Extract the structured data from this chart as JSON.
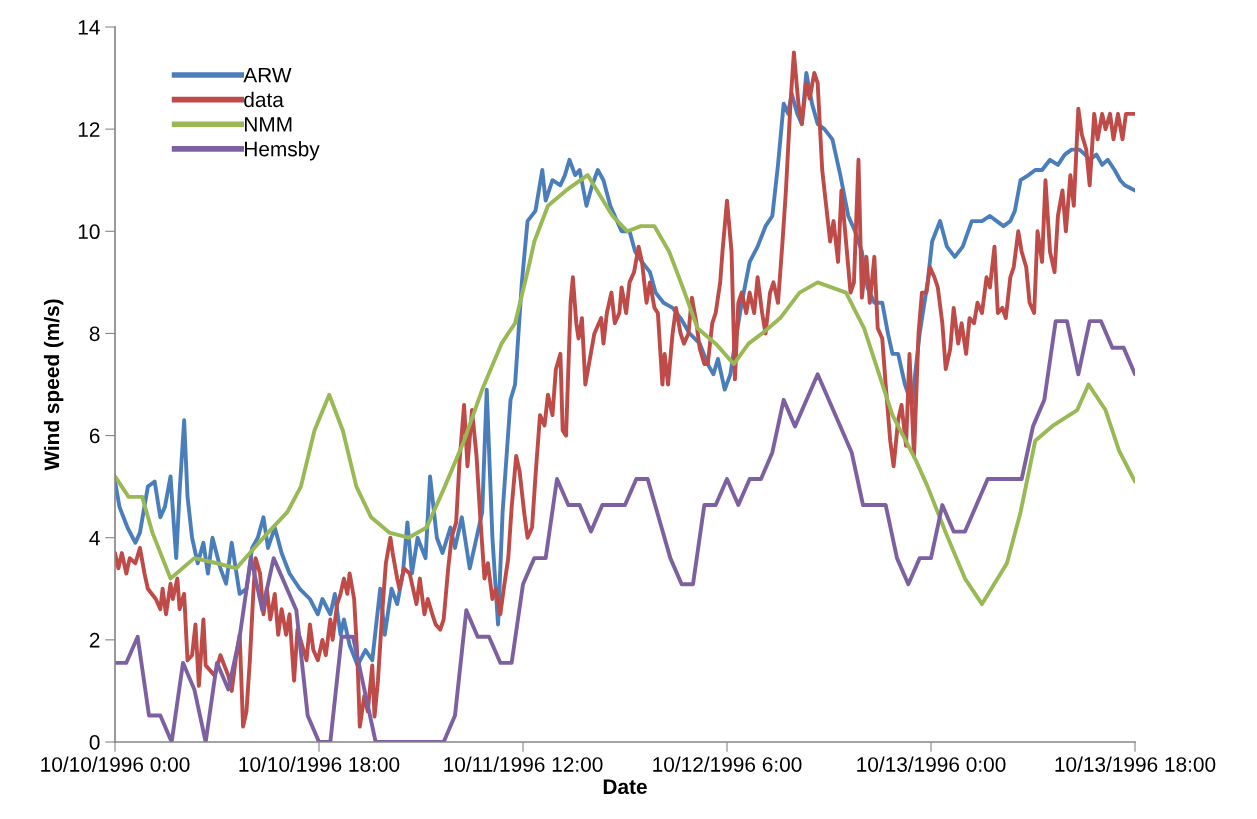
{
  "chart_data": {
    "type": "line",
    "xlabel": "Date",
    "ylabel": "Wind speed (m/s)",
    "xlim": [
      "1996-10-10T00:00",
      "1996-10-13T18:00"
    ],
    "xticks": [
      {
        "value": "1996-10-10T00:00",
        "label": "10/10/1996 0:00"
      },
      {
        "value": "1996-10-10T18:00",
        "label": "10/10/1996 18:00"
      },
      {
        "value": "1996-10-11T12:00",
        "label": "10/11/1996 12:00"
      },
      {
        "value": "1996-10-12T06:00",
        "label": "10/12/1996 6:00"
      },
      {
        "value": "1996-10-13T00:00",
        "label": "10/13/1996 0:00"
      },
      {
        "value": "1996-10-13T18:00",
        "label": "10/13/1996 18:00"
      }
    ],
    "ylim": [
      0,
      14
    ],
    "yticks": [
      0,
      2,
      4,
      6,
      8,
      10,
      12,
      14
    ],
    "grid": false,
    "legend": "top left",
    "marker": "none",
    "line_style": "solid",
    "series": [
      {
        "name": "ARW",
        "color": "#4a7ebb",
        "x": [
          "1996-10-10T00:00",
          "1996-10-10T00:24",
          "1996-10-10T01:06",
          "1996-10-10T01:48",
          "1996-10-10T02:12",
          "1996-10-10T02:54",
          "1996-10-10T03:30",
          "1996-10-10T04:00",
          "1996-10-10T04:24",
          "1996-10-10T04:54",
          "1996-10-10T05:24",
          "1996-10-10T05:42",
          "1996-10-10T06:06",
          "1996-10-10T06:24",
          "1996-10-10T06:48",
          "1996-10-10T07:18",
          "1996-10-10T07:48",
          "1996-10-10T08:12",
          "1996-10-10T08:36",
          "1996-10-10T09:18",
          "1996-10-10T09:48",
          "1996-10-10T10:18",
          "1996-10-10T11:00",
          "1996-10-10T11:36",
          "1996-10-10T12:06",
          "1996-10-10T12:36",
          "1996-10-10T13:06",
          "1996-10-10T13:30",
          "1996-10-10T14:06",
          "1996-10-10T14:42",
          "1996-10-10T15:24",
          "1996-10-10T16:18",
          "1996-10-10T17:12",
          "1996-10-10T17:54",
          "1996-10-10T18:18",
          "1996-10-10T19:00",
          "1996-10-10T19:24",
          "1996-10-10T19:54",
          "1996-10-10T20:12",
          "1996-10-10T20:42",
          "1996-10-10T21:24",
          "1996-10-10T22:06",
          "1996-10-10T22:42",
          "1996-10-10T23:24",
          "1996-10-10T23:48",
          "1996-10-11T00:24",
          "1996-10-11T00:54",
          "1996-10-11T01:24",
          "1996-10-11T01:48",
          "1996-10-11T02:12",
          "1996-10-11T02:42",
          "1996-10-11T03:24",
          "1996-10-11T03:48",
          "1996-10-11T04:24",
          "1996-10-11T04:54",
          "1996-10-11T05:36",
          "1996-10-11T06:00",
          "1996-10-11T06:36",
          "1996-10-11T07:18",
          "1996-10-11T07:48",
          "1996-10-11T08:24",
          "1996-10-11T08:48",
          "1996-10-11T09:18",
          "1996-10-11T09:48",
          "1996-10-11T10:12",
          "1996-10-11T10:54",
          "1996-10-11T11:18",
          "1996-10-11T11:54",
          "1996-10-11T12:24",
          "1996-10-11T13:06",
          "1996-10-11T13:42",
          "1996-10-11T14:00",
          "1996-10-11T14:36",
          "1996-10-11T15:18",
          "1996-10-11T15:42",
          "1996-10-11T16:06",
          "1996-10-11T16:36",
          "1996-10-11T17:00",
          "1996-10-11T17:36",
          "1996-10-11T18:06",
          "1996-10-11T18:36",
          "1996-10-11T19:06",
          "1996-10-11T19:42",
          "1996-10-11T20:06",
          "1996-10-11T20:42",
          "1996-10-11T21:24",
          "1996-10-11T21:54",
          "1996-10-11T22:30",
          "1996-10-11T23:12",
          "1996-10-11T23:42",
          "1996-10-12T00:24",
          "1996-10-12T01:12",
          "1996-10-12T01:54",
          "1996-10-12T02:42",
          "1996-10-12T03:36",
          "1996-10-12T04:18",
          "1996-10-12T04:48",
          "1996-10-12T05:12",
          "1996-10-12T05:48",
          "1996-10-12T06:18",
          "1996-10-12T06:42",
          "1996-10-12T07:18",
          "1996-10-12T08:00",
          "1996-10-12T08:42",
          "1996-10-12T09:24",
          "1996-10-12T10:00",
          "1996-10-12T10:30",
          "1996-10-12T11:00",
          "1996-10-12T11:24",
          "1996-10-12T11:42",
          "1996-10-12T12:12",
          "1996-10-12T12:36",
          "1996-10-12T13:00",
          "1996-10-12T13:30",
          "1996-10-12T14:00",
          "1996-10-12T14:36",
          "1996-10-12T15:18",
          "1996-10-12T16:00",
          "1996-10-12T16:42",
          "1996-10-12T17:18",
          "1996-10-12T17:54",
          "1996-10-12T18:24",
          "1996-10-12T19:00",
          "1996-10-12T19:42",
          "1996-10-12T20:12",
          "1996-10-12T20:36",
          "1996-10-12T21:06",
          "1996-10-12T21:42",
          "1996-10-12T22:18",
          "1996-10-12T23:00",
          "1996-10-12T23:42",
          "1996-10-13T00:06",
          "1996-10-13T00:48",
          "1996-10-13T01:24",
          "1996-10-13T02:06",
          "1996-10-13T02:48",
          "1996-10-13T03:36",
          "1996-10-13T04:30",
          "1996-10-13T05:12",
          "1996-10-13T05:48",
          "1996-10-13T06:24",
          "1996-10-13T07:00",
          "1996-10-13T07:24",
          "1996-10-13T07:54",
          "1996-10-13T08:36",
          "1996-10-13T09:12",
          "1996-10-13T09:48",
          "1996-10-13T10:30",
          "1996-10-13T11:12",
          "1996-10-13T11:48",
          "1996-10-13T12:24",
          "1996-10-13T13:06",
          "1996-10-13T13:36",
          "1996-10-13T14:00",
          "1996-10-13T14:36",
          "1996-10-13T15:06",
          "1996-10-13T15:36",
          "1996-10-13T16:12",
          "1996-10-13T16:42",
          "1996-10-13T17:06",
          "1996-10-13T18:00"
        ],
        "values": [
          5.1,
          4.6,
          4.2,
          3.9,
          4.1,
          5.0,
          5.1,
          4.4,
          4.6,
          5.2,
          3.6,
          4.9,
          6.3,
          4.8,
          4.0,
          3.5,
          3.9,
          3.3,
          4.0,
          3.4,
          3.1,
          3.9,
          2.9,
          3.0,
          3.8,
          4.0,
          4.4,
          3.8,
          4.2,
          3.7,
          3.3,
          3.0,
          2.8,
          2.5,
          2.8,
          2.5,
          2.9,
          2.1,
          2.4,
          1.9,
          1.5,
          1.8,
          1.6,
          3.0,
          2.1,
          3.0,
          2.7,
          3.3,
          4.3,
          3.3,
          4.0,
          3.6,
          5.2,
          4.0,
          3.7,
          4.2,
          3.8,
          4.4,
          3.4,
          3.9,
          4.5,
          6.9,
          4.0,
          2.3,
          4.5,
          6.7,
          7.0,
          9.0,
          10.2,
          10.4,
          11.2,
          10.6,
          11.0,
          10.9,
          11.1,
          11.4,
          11.1,
          11.2,
          10.5,
          10.9,
          11.2,
          11.0,
          10.5,
          10.3,
          10.0,
          10.0,
          9.6,
          9.4,
          9.2,
          8.8,
          8.6,
          8.5,
          8.3,
          8.0,
          7.8,
          7.4,
          7.2,
          7.5,
          6.9,
          7.2,
          7.8,
          8.6,
          9.4,
          9.7,
          10.1,
          10.3,
          11.3,
          12.5,
          12.3,
          12.7,
          12.3,
          12.1,
          13.1,
          12.5,
          12.1,
          12.0,
          11.8,
          11.1,
          10.3,
          10.0,
          9.6,
          8.9,
          8.6,
          8.6,
          8.0,
          7.6,
          7.6,
          7.0,
          6.6,
          8.0,
          9.0,
          9.8,
          10.2,
          9.7,
          9.5,
          9.7,
          10.2,
          10.2,
          10.3,
          10.2,
          10.1,
          10.2,
          10.4,
          11.0,
          11.1,
          11.2,
          11.2,
          11.4,
          11.3,
          11.5,
          11.6,
          11.6,
          11.5,
          11.4,
          11.5,
          11.3,
          11.4,
          11.2,
          11.0,
          10.9,
          10.8
        ]
      },
      {
        "name": "data",
        "color": "#be4b48",
        "x": [
          "1996-10-10T00:00",
          "1996-10-10T00:18",
          "1996-10-10T00:36",
          "1996-10-10T01:00",
          "1996-10-10T01:18",
          "1996-10-10T01:48",
          "1996-10-10T02:12",
          "1996-10-10T02:36",
          "1996-10-10T02:54",
          "1996-10-10T03:36",
          "1996-10-10T04:00",
          "1996-10-10T04:12",
          "1996-10-10T04:30",
          "1996-10-10T04:54",
          "1996-10-10T05:06",
          "1996-10-10T05:30",
          "1996-10-10T05:42",
          "1996-10-10T06:06",
          "1996-10-10T06:24",
          "1996-10-10T06:48",
          "1996-10-10T07:06",
          "1996-10-10T07:24",
          "1996-10-10T07:48",
          "1996-10-10T08:00",
          "1996-10-10T08:48",
          "1996-10-10T09:18",
          "1996-10-10T10:00",
          "1996-10-10T10:18",
          "1996-10-10T10:42",
          "1996-10-10T11:00",
          "1996-10-10T11:18",
          "1996-10-10T11:36",
          "1996-10-10T11:54",
          "1996-10-10T12:12",
          "1996-10-10T12:24",
          "1996-10-10T12:48",
          "1996-10-10T13:06",
          "1996-10-10T13:24",
          "1996-10-10T13:42",
          "1996-10-10T14:06",
          "1996-10-10T14:24",
          "1996-10-10T14:42",
          "1996-10-10T15:06",
          "1996-10-10T15:24",
          "1996-10-10T15:48",
          "1996-10-10T16:06",
          "1996-10-10T16:30",
          "1996-10-10T16:54",
          "1996-10-10T17:12",
          "1996-10-10T17:30",
          "1996-10-10T17:54",
          "1996-10-10T18:18",
          "1996-10-10T18:36",
          "1996-10-10T19:00",
          "1996-10-10T19:12",
          "1996-10-10T19:36",
          "1996-10-10T19:54",
          "1996-10-10T20:12",
          "1996-10-10T20:30",
          "1996-10-10T20:42",
          "1996-10-10T21:06",
          "1996-10-10T21:24",
          "1996-10-10T21:36",
          "1996-10-10T22:00",
          "1996-10-10T22:18",
          "1996-10-10T22:42",
          "1996-10-10T22:54",
          "1996-10-10T23:12",
          "1996-10-10T23:36",
          "1996-10-10T23:54",
          "1996-10-11T00:18",
          "1996-10-11T00:30",
          "1996-10-11T00:54",
          "1996-10-11T01:06",
          "1996-10-11T01:30",
          "1996-10-11T02:00",
          "1996-10-11T02:36",
          "1996-10-11T02:54",
          "1996-10-11T03:18",
          "1996-10-11T03:36",
          "1996-10-11T04:00",
          "1996-10-11T04:18",
          "1996-10-11T04:42",
          "1996-10-11T05:00",
          "1996-10-11T05:24",
          "1996-10-11T05:42",
          "1996-10-11T06:06",
          "1996-10-11T06:24",
          "1996-10-11T06:48",
          "1996-10-11T07:06",
          "1996-10-11T07:30",
          "1996-10-11T07:54",
          "1996-10-11T08:12",
          "1996-10-11T08:36",
          "1996-10-11T08:54",
          "1996-10-11T09:18",
          "1996-10-11T09:36",
          "1996-10-11T10:00",
          "1996-10-11T10:18",
          "1996-10-11T10:42",
          "1996-10-11T11:00",
          "1996-10-11T11:24",
          "1996-10-11T11:42",
          "1996-10-11T12:06",
          "1996-10-11T12:24",
          "1996-10-11T12:48",
          "1996-10-11T13:06",
          "1996-10-11T13:30",
          "1996-10-11T13:54",
          "1996-10-11T14:12",
          "1996-10-11T14:36",
          "1996-10-11T14:54",
          "1996-10-11T15:18",
          "1996-10-11T15:30",
          "1996-10-11T15:48",
          "1996-10-11T16:12",
          "1996-10-11T16:24",
          "1996-10-11T16:42",
          "1996-10-11T16:54",
          "1996-10-11T17:12",
          "1996-10-11T17:30",
          "1996-10-11T17:54",
          "1996-10-11T18:18",
          "1996-10-11T18:54",
          "1996-10-11T19:06",
          "1996-10-11T19:24",
          "1996-10-11T19:48",
          "1996-10-11T20:06",
          "1996-10-11T20:30",
          "1996-10-11T20:42",
          "1996-10-11T21:06",
          "1996-10-11T21:24",
          "1996-10-11T21:48",
          "1996-10-11T22:12",
          "1996-10-11T22:30",
          "1996-10-11T22:54",
          "1996-10-11T23:12",
          "1996-10-11T23:36",
          "1996-10-11T23:54",
          "1996-10-12T00:18",
          "1996-10-12T00:30",
          "1996-10-12T00:48",
          "1996-10-12T01:12",
          "1996-10-12T01:30",
          "1996-10-12T01:54",
          "1996-10-12T02:12",
          "1996-10-12T02:36",
          "1996-10-12T02:54",
          "1996-10-12T03:18",
          "1996-10-12T03:36",
          "1996-10-12T04:00",
          "1996-10-12T04:18",
          "1996-10-12T04:42",
          "1996-10-12T05:00",
          "1996-10-12T05:24",
          "1996-10-12T05:36",
          "1996-10-12T06:00",
          "1996-10-12T06:24",
          "1996-10-12T06:42",
          "1996-10-12T07:00",
          "1996-10-12T07:18",
          "1996-10-12T07:42",
          "1996-10-12T08:00",
          "1996-10-12T08:24",
          "1996-10-12T08:42",
          "1996-10-12T09:06",
          "1996-10-12T09:24",
          "1996-10-12T09:48",
          "1996-10-12T10:06",
          "1996-10-12T10:30",
          "1996-10-12T10:54",
          "1996-10-12T11:12",
          "1996-10-12T11:36",
          "1996-10-12T11:54",
          "1996-10-12T12:18",
          "1996-10-12T12:36",
          "1996-10-12T13:00",
          "1996-10-12T13:18",
          "1996-10-12T13:42",
          "1996-10-12T14:00",
          "1996-10-12T14:24",
          "1996-10-12T14:42",
          "1996-10-12T15:06",
          "1996-10-12T15:24",
          "1996-10-12T15:48",
          "1996-10-12T16:06",
          "1996-10-12T16:30",
          "1996-10-12T16:54",
          "1996-10-12T17:12",
          "1996-10-12T17:36",
          "1996-10-12T17:54",
          "1996-10-12T18:18",
          "1996-10-12T18:36",
          "1996-10-12T19:00",
          "1996-10-12T19:18",
          "1996-10-12T19:42",
          "1996-10-12T20:00",
          "1996-10-12T20:24",
          "1996-10-12T20:42",
          "1996-10-12T21:06",
          "1996-10-12T21:24",
          "1996-10-12T21:48",
          "1996-10-12T22:06",
          "1996-10-12T22:30",
          "1996-10-12T22:54",
          "1996-10-12T23:12",
          "1996-10-12T23:36",
          "1996-10-12T23:54",
          "1996-10-13T00:18",
          "1996-10-13T00:36",
          "1996-10-13T01:00",
          "1996-10-13T01:18",
          "1996-10-13T01:42",
          "1996-10-13T02:00",
          "1996-10-13T02:24",
          "1996-10-13T02:42",
          "1996-10-13T03:06",
          "1996-10-13T03:24",
          "1996-10-13T03:48",
          "1996-10-13T04:06",
          "1996-10-13T04:30",
          "1996-10-13T04:54",
          "1996-10-13T05:12",
          "1996-10-13T05:36",
          "1996-10-13T05:54",
          "1996-10-13T06:18",
          "1996-10-13T06:36",
          "1996-10-13T07:00",
          "1996-10-13T07:18",
          "1996-10-13T07:42",
          "1996-10-13T08:00",
          "1996-10-13T08:24",
          "1996-10-13T08:42",
          "1996-10-13T09:06",
          "1996-10-13T09:24",
          "1996-10-13T09:48",
          "1996-10-13T10:06",
          "1996-10-13T10:30",
          "1996-10-13T10:54",
          "1996-10-13T11:12",
          "1996-10-13T11:36",
          "1996-10-13T11:54",
          "1996-10-13T12:18",
          "1996-10-13T12:36",
          "1996-10-13T13:00",
          "1996-10-13T13:18",
          "1996-10-13T13:42",
          "1996-10-13T14:00",
          "1996-10-13T14:24",
          "1996-10-13T14:42",
          "1996-10-13T15:06",
          "1996-10-13T15:24",
          "1996-10-13T15:48",
          "1996-10-13T16:06",
          "1996-10-13T16:30",
          "1996-10-13T16:54",
          "1996-10-13T17:12",
          "1996-10-13T18:00"
        ],
        "values": [
          3.7,
          3.4,
          3.7,
          3.3,
          3.6,
          3.5,
          3.8,
          3.3,
          3.0,
          2.8,
          2.6,
          3.0,
          2.5,
          3.1,
          2.8,
          3.2,
          2.6,
          2.9,
          1.6,
          1.7,
          2.3,
          1.1,
          2.4,
          1.5,
          1.3,
          1.7,
          1.3,
          1.0,
          1.7,
          2.1,
          0.3,
          0.6,
          1.6,
          2.9,
          3.6,
          3.3,
          2.5,
          3.0,
          2.4,
          2.9,
          2.1,
          2.6,
          2.1,
          2.5,
          1.2,
          2.2,
          1.9,
          1.6,
          2.3,
          1.8,
          1.6,
          2.0,
          1.7,
          2.4,
          2.0,
          2.7,
          2.9,
          3.2,
          2.9,
          3.3,
          2.8,
          1.6,
          0.3,
          0.9,
          0.6,
          1.5,
          0.5,
          1.2,
          2.6,
          3.5,
          4.0,
          3.7,
          3.2,
          3.0,
          3.4,
          3.3,
          2.7,
          3.2,
          2.5,
          2.8,
          2.5,
          2.3,
          2.2,
          2.4,
          3.4,
          4.0,
          4.3,
          5.5,
          6.6,
          5.4,
          6.5,
          5.6,
          4.5,
          3.2,
          3.5,
          2.8,
          3.0,
          2.5,
          3.0,
          3.6,
          4.6,
          5.6,
          5.3,
          4.5,
          4.0,
          4.2,
          5.2,
          6.4,
          6.2,
          6.8,
          6.4,
          7.3,
          7.6,
          6.1,
          6.0,
          8.6,
          9.1,
          8.2,
          7.9,
          8.3,
          7.0,
          7.5,
          8.0,
          8.3,
          7.8,
          8.4,
          8.8,
          8.2,
          8.4,
          8.9,
          8.4,
          9.0,
          9.2,
          9.7,
          9.4,
          8.6,
          9.0,
          8.5,
          8.4,
          7.0,
          7.6,
          7.0,
          8.0,
          8.5,
          8.0,
          7.8,
          8.0,
          8.7,
          8.2,
          7.7,
          7.4,
          7.4,
          8.2,
          8.4,
          9.0,
          9.6,
          10.6,
          9.6,
          7.1,
          8.6,
          8.8,
          8.4,
          8.8,
          8.4,
          9.1,
          8.4,
          8.0,
          8.8,
          9.0,
          8.6,
          9.8,
          10.8,
          12.5,
          13.5,
          12.5,
          12.1,
          12.9,
          12.6,
          13.1,
          12.9,
          11.2,
          10.6,
          9.8,
          10.2,
          9.4,
          10.8,
          9.8,
          8.8,
          9.0,
          11.4,
          8.7,
          9.5,
          8.6,
          9.5,
          8.1,
          7.9,
          7.0,
          5.9,
          5.4,
          6.3,
          6.6,
          5.8,
          7.6,
          5.6,
          8.0,
          8.8,
          8.8,
          9.3,
          9.1,
          8.9,
          8.2,
          7.3,
          7.7,
          8.5,
          7.8,
          8.2,
          7.6,
          8.3,
          8.2,
          8.6,
          8.4,
          9.1,
          8.9,
          9.7,
          8.4,
          8.5,
          8.3,
          9.1,
          9.3,
          10.0,
          9.6,
          9.3,
          8.6,
          8.4,
          10.0,
          9.4,
          11.0,
          9.6,
          9.2,
          10.3,
          10.8,
          10.0,
          11.1,
          10.5,
          12.4,
          11.9,
          11.6,
          10.9,
          12.3,
          11.8,
          12.3,
          12.0,
          12.3,
          11.8,
          12.3,
          11.8,
          12.3,
          12.3
        ]
      },
      {
        "name": "NMM",
        "color": "#98b954",
        "x": [
          "1996-10-10T00:00",
          "1996-10-10T01:12",
          "1996-10-10T02:24",
          "1996-10-10T03:18",
          "1996-10-10T04:54",
          "1996-10-10T07:00",
          "1996-10-10T09:00",
          "1996-10-10T10:42",
          "1996-10-10T11:54",
          "1996-10-10T13:30",
          "1996-10-10T15:12",
          "1996-10-10T16:24",
          "1996-10-10T17:36",
          "1996-10-10T18:54",
          "1996-10-10T20:06",
          "1996-10-10T21:18",
          "1996-10-10T22:36",
          "1996-10-11T00:12",
          "1996-10-11T01:54",
          "1996-10-11T03:30",
          "1996-10-11T05:06",
          "1996-10-11T06:48",
          "1996-10-11T08:24",
          "1996-10-11T10:06",
          "1996-10-11T11:18",
          "1996-10-11T12:30",
          "1996-10-11T13:00",
          "1996-10-11T14:12",
          "1996-10-11T15:48",
          "1996-10-11T17:42",
          "1996-10-11T19:54",
          "1996-10-11T21:12",
          "1996-10-11T22:24",
          "1996-10-11T23:36",
          "1996-10-12T00:54",
          "1996-10-12T02:06",
          "1996-10-12T03:24",
          "1996-10-12T05:00",
          "1996-10-12T06:36",
          "1996-10-12T07:54",
          "1996-10-12T09:06",
          "1996-10-12T10:42",
          "1996-10-12T12:24",
          "1996-10-12T14:00",
          "1996-10-12T16:30",
          "1996-10-12T18:06",
          "1996-10-12T20:36",
          "1996-10-12T22:42",
          "1996-10-12T23:42",
          "1996-10-13T01:18",
          "1996-10-13T03:00",
          "1996-10-13T04:30",
          "1996-10-13T06:42",
          "1996-10-13T07:54",
          "1996-10-13T09:12",
          "1996-10-13T10:48",
          "1996-10-13T12:54",
          "1996-10-13T13:54",
          "1996-10-13T15:24",
          "1996-10-13T16:36",
          "1996-10-13T18:00"
        ],
        "values": [
          5.2,
          4.8,
          4.8,
          4.1,
          3.2,
          3.6,
          3.5,
          3.4,
          3.7,
          4.1,
          4.5,
          5.0,
          6.1,
          6.8,
          6.1,
          5.0,
          4.4,
          4.1,
          4.0,
          4.2,
          5.0,
          5.9,
          6.9,
          7.8,
          8.2,
          9.3,
          9.8,
          10.5,
          10.8,
          11.1,
          10.3,
          10.0,
          10.1,
          10.1,
          9.6,
          8.9,
          8.1,
          7.8,
          7.4,
          7.8,
          8.0,
          8.3,
          8.8,
          9.0,
          8.8,
          8.1,
          6.4,
          5.5,
          5.0,
          4.1,
          3.2,
          2.7,
          3.5,
          4.5,
          5.9,
          6.2,
          6.5,
          7.0,
          6.5,
          5.7,
          5.1
        ]
      },
      {
        "name": "Hemsby",
        "color": "#7d60a0",
        "x": [
          "1996-10-10T00:00",
          "1996-10-10T01:00",
          "1996-10-10T02:00",
          "1996-10-10T03:00",
          "1996-10-10T04:00",
          "1996-10-10T05:00",
          "1996-10-10T06:00",
          "1996-10-10T07:00",
          "1996-10-10T08:00",
          "1996-10-10T09:00",
          "1996-10-10T10:00",
          "1996-10-10T11:00",
          "1996-10-10T12:00",
          "1996-10-10T13:00",
          "1996-10-10T14:00",
          "1996-10-10T16:00",
          "1996-10-10T17:00",
          "1996-10-10T18:00",
          "1996-10-10T19:00",
          "1996-10-10T20:00",
          "1996-10-10T21:00",
          "1996-10-10T23:00",
          "1996-10-11T05:00",
          "1996-10-11T06:00",
          "1996-10-11T07:00",
          "1996-10-11T08:00",
          "1996-10-11T09:00",
          "1996-10-11T10:00",
          "1996-10-11T11:00",
          "1996-10-11T12:00",
          "1996-10-11T13:00",
          "1996-10-11T14:00",
          "1996-10-11T15:00",
          "1996-10-11T16:00",
          "1996-10-11T17:00",
          "1996-10-11T18:00",
          "1996-10-11T19:00",
          "1996-10-11T21:00",
          "1996-10-11T22:00",
          "1996-10-11T23:00",
          "1996-10-12T01:00",
          "1996-10-12T02:00",
          "1996-10-12T03:00",
          "1996-10-12T04:00",
          "1996-10-12T05:00",
          "1996-10-12T06:00",
          "1996-10-12T07:00",
          "1996-10-12T08:00",
          "1996-10-12T09:00",
          "1996-10-12T10:00",
          "1996-10-12T11:00",
          "1996-10-12T12:00",
          "1996-10-12T14:00",
          "1996-10-12T17:00",
          "1996-10-12T18:00",
          "1996-10-12T20:00",
          "1996-10-12T21:00",
          "1996-10-12T22:00",
          "1996-10-12T23:00",
          "1996-10-13T00:00",
          "1996-10-13T01:00",
          "1996-10-13T02:00",
          "1996-10-13T03:00",
          "1996-10-13T05:00",
          "1996-10-13T08:00",
          "1996-10-13T09:00",
          "1996-10-13T10:00",
          "1996-10-13T11:00",
          "1996-10-13T12:00",
          "1996-10-13T13:00",
          "1996-10-13T14:00",
          "1996-10-13T15:00",
          "1996-10-13T16:00",
          "1996-10-13T17:00",
          "1996-10-13T18:00"
        ],
        "values": [
          1.55,
          1.55,
          2.06,
          0.52,
          0.52,
          0,
          1.55,
          1.03,
          0,
          1.55,
          1.03,
          2.06,
          3.6,
          2.58,
          3.6,
          2.58,
          0.52,
          0,
          0,
          2.06,
          2.06,
          0,
          0,
          0.52,
          2.58,
          2.06,
          2.06,
          1.55,
          1.55,
          3.09,
          3.6,
          3.6,
          5.15,
          4.64,
          4.64,
          4.12,
          4.64,
          4.64,
          5.15,
          5.15,
          3.6,
          3.09,
          3.09,
          4.64,
          4.64,
          5.15,
          4.64,
          5.15,
          5.15,
          5.67,
          6.7,
          6.18,
          7.2,
          5.67,
          4.64,
          4.64,
          3.6,
          3.09,
          3.6,
          3.6,
          4.64,
          4.12,
          4.12,
          5.15,
          5.15,
          6.18,
          6.7,
          8.24,
          8.24,
          7.2,
          8.24,
          8.24,
          7.72,
          7.72,
          7.2
        ]
      }
    ]
  }
}
